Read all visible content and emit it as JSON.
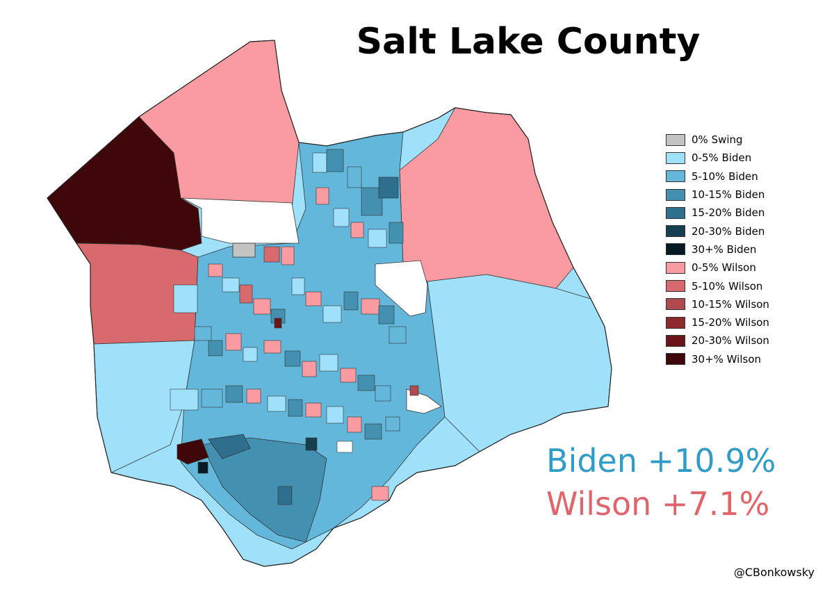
{
  "title": "Salt Lake County",
  "legend": [
    {
      "label": "0% Swing",
      "color": "#c4c4c4"
    },
    {
      "label": "0-5% Biden",
      "color": "#9fe1fb"
    },
    {
      "label": "5-10% Biden",
      "color": "#62b7db"
    },
    {
      "label": "10-15% Biden",
      "color": "#4390b0"
    },
    {
      "label": "15-20% Biden",
      "color": "#2d6f8c"
    },
    {
      "label": "20-30% Biden",
      "color": "#173f52"
    },
    {
      "label": "30+% Biden",
      "color": "#061a25"
    },
    {
      "label": "0-5% Wilson",
      "color": "#f99ba0"
    },
    {
      "label": "5-10% Wilson",
      "color": "#d86a6e"
    },
    {
      "label": "10-15% Wilson",
      "color": "#b14a4e"
    },
    {
      "label": "15-20% Wilson",
      "color": "#8c2a2e"
    },
    {
      "label": "20-30% Wilson",
      "color": "#6a1518"
    },
    {
      "label": "30+% Wilson",
      "color": "#3f070a"
    }
  ],
  "results": {
    "biden": {
      "text": "Biden +10.9%",
      "color": "#2f9cc9"
    },
    "wilson": {
      "text": "Wilson +7.1%",
      "color": "#e06469"
    }
  },
  "credit": "@CBonkowsky"
}
